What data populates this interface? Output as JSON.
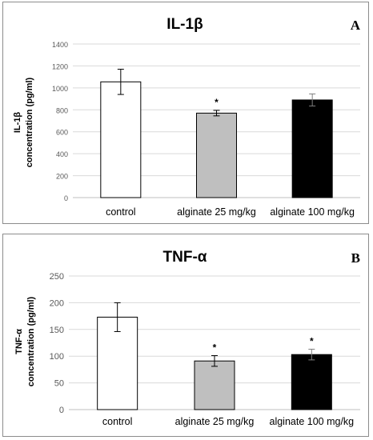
{
  "chart_data": [
    {
      "type": "bar",
      "title": "IL-1β",
      "panel_label": "A",
      "ylabel_lines": [
        "IL-1β",
        "concentration (pg/ml)"
      ],
      "categories": [
        "control",
        "alginate 25 mg/kg",
        "alginate 100 mg/kg"
      ],
      "values": [
        1055,
        770,
        890
      ],
      "errors": [
        115,
        25,
        55
      ],
      "significance": [
        "",
        "*",
        ""
      ],
      "bar_colors": [
        "#ffffff",
        "#bfbfbf",
        "#000000"
      ],
      "ylim": [
        0,
        1400
      ],
      "yticks": [
        0,
        200,
        400,
        600,
        800,
        1000,
        1200,
        1400
      ],
      "grid": true,
      "legend": "none"
    },
    {
      "type": "bar",
      "title": "TNF-α",
      "panel_label": "B",
      "ylabel_lines": [
        "TNF-α",
        "concentration (pg/ml)"
      ],
      "categories": [
        "control",
        "alginate 25 mg/kg",
        "alginate 100 mg/kg"
      ],
      "values": [
        173,
        91,
        103
      ],
      "errors": [
        27,
        10,
        10
      ],
      "significance": [
        "",
        "*",
        "*"
      ],
      "bar_colors": [
        "#ffffff",
        "#bfbfbf",
        "#000000"
      ],
      "ylim": [
        0,
        250
      ],
      "yticks": [
        0,
        50,
        100,
        150,
        200,
        250
      ],
      "grid": true,
      "legend": "none"
    }
  ]
}
